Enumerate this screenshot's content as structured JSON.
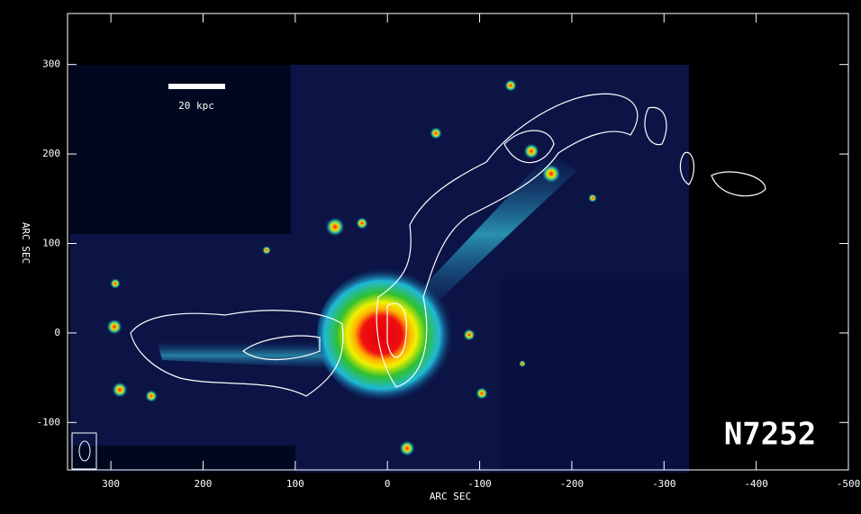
{
  "chart_data": {
    "type": "image",
    "title": "N7252",
    "scale_label": "20 kpc",
    "xlabel": "ARC SEC",
    "ylabel": "ARC SEC",
    "xlim": [
      347,
      -500
    ],
    "ylim": [
      -153,
      357
    ],
    "xticks": [
      300,
      200,
      100,
      0,
      -100,
      -200,
      -300,
      -400,
      -500
    ],
    "yticks": [
      -100,
      0,
      100,
      200,
      300
    ]
  }
}
